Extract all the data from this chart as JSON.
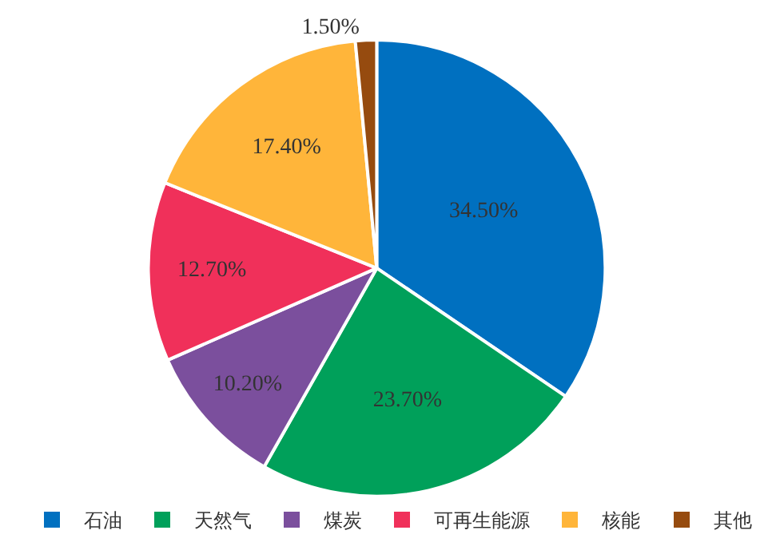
{
  "chart_data": {
    "type": "pie",
    "categories": [
      "石油",
      "天然气",
      "煤炭",
      "可再生能源",
      "核能",
      "其他"
    ],
    "values": [
      34.5,
      23.7,
      10.2,
      12.7,
      17.4,
      1.5
    ],
    "value_labels": [
      "34.50%",
      "23.70%",
      "10.20%",
      "12.70%",
      "17.40%",
      "1.50%"
    ],
    "colors": [
      "#0070c0",
      "#00a05a",
      "#7b4f9d",
      "#f0305a",
      "#ffb53a",
      "#964b0f"
    ],
    "legend": "bottom"
  }
}
